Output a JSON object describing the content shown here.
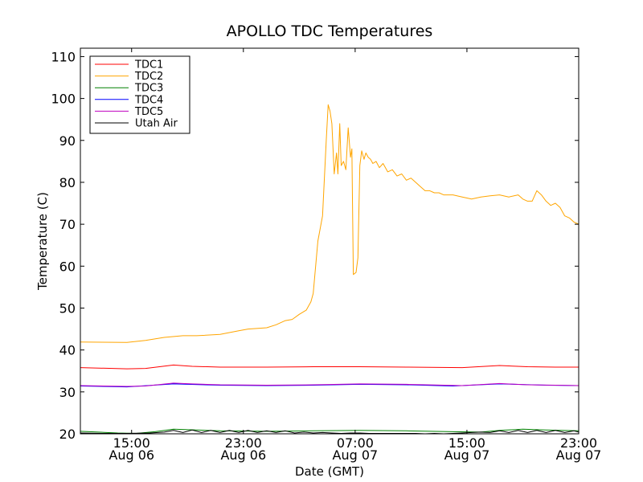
{
  "chart_data": {
    "type": "line",
    "title": "APOLLO TDC Temperatures",
    "xlabel": "Date (GMT)",
    "ylabel": "Temperature (C)",
    "xlim_hours": [
      0,
      107
    ],
    "ylim": [
      20,
      112
    ],
    "yticks": [
      20,
      30,
      40,
      50,
      60,
      70,
      80,
      90,
      100,
      110
    ],
    "xticks": [
      {
        "hour": 11,
        "time": "15:00",
        "date": "Aug 06"
      },
      {
        "hour": 35,
        "time": "23:00",
        "date": "Aug 06"
      },
      {
        "hour": 59,
        "time": "07:00",
        "date": "Aug 07"
      },
      {
        "hour": 83,
        "time": "15:00",
        "date": "Aug 07"
      },
      {
        "hour": 107,
        "time": "23:00",
        "date": "Aug 07"
      }
    ],
    "legend_position": "top-left",
    "series": [
      {
        "name": "TDC1",
        "color": "#ff0000",
        "x": [
          0,
          10,
          14,
          20,
          24,
          30,
          40,
          50,
          60,
          70,
          82,
          90,
          96,
          102,
          107
        ],
        "y": [
          35.8,
          35.5,
          35.6,
          36.4,
          36.1,
          35.9,
          35.9,
          36.0,
          36.0,
          35.9,
          35.8,
          36.3,
          36.0,
          35.9,
          35.9
        ]
      },
      {
        "name": "TDC2",
        "color": "#ffa500",
        "x": [
          0,
          10,
          14,
          18,
          22,
          25,
          30,
          34,
          36,
          40,
          42,
          44,
          45.5,
          47,
          48.5,
          49.5,
          50,
          51,
          52,
          52.8,
          53.2,
          53.6,
          54,
          54.5,
          55,
          55.3,
          55.7,
          56,
          56.5,
          57,
          57.5,
          58,
          58.3,
          58.6,
          59.2,
          59.6,
          60,
          60.4,
          60.9,
          61.3,
          61.8,
          62.3,
          62.8,
          63.5,
          64.2,
          65,
          66,
          67,
          68,
          69,
          70,
          71,
          72,
          73,
          74,
          75,
          76,
          77,
          78,
          80,
          82,
          84,
          86,
          88,
          90,
          92,
          94,
          95,
          96,
          97,
          98,
          99,
          100,
          101,
          102,
          103,
          104,
          105,
          106,
          107
        ],
        "y": [
          41.9,
          41.8,
          42.3,
          43.0,
          43.4,
          43.4,
          43.7,
          44.6,
          45.0,
          45.3,
          46.0,
          47.0,
          47.3,
          48.5,
          49.5,
          51.5,
          53.5,
          66.0,
          72.0,
          90.0,
          98.5,
          97.0,
          94.0,
          82.0,
          87.0,
          82.0,
          94.0,
          84.0,
          85.0,
          83.0,
          93.0,
          86.0,
          88.0,
          58.0,
          58.5,
          62.0,
          84.0,
          87.5,
          85.5,
          87.0,
          86.0,
          85.5,
          84.5,
          85.0,
          83.5,
          84.5,
          82.5,
          83.0,
          81.5,
          82.0,
          80.5,
          81.0,
          80.0,
          79.0,
          78.0,
          78.0,
          77.5,
          77.5,
          77.0,
          77.0,
          76.5,
          76.0,
          76.5,
          76.8,
          77.0,
          76.5,
          77.0,
          76.0,
          75.5,
          75.5,
          78.0,
          77.0,
          75.5,
          74.5,
          75.0,
          74.0,
          72.0,
          71.5,
          70.5,
          70.0
        ]
      },
      {
        "name": "TDC3",
        "color": "#008000",
        "x": [
          0,
          8,
          12,
          16,
          20,
          25,
          30,
          40,
          50,
          60,
          70,
          80,
          86,
          90,
          95,
          100,
          107
        ],
        "y": [
          20.6,
          20.2,
          20.1,
          20.5,
          21.1,
          20.9,
          20.7,
          20.6,
          20.7,
          20.8,
          20.7,
          20.5,
          20.4,
          20.8,
          21.1,
          20.9,
          20.7
        ]
      },
      {
        "name": "TDC4",
        "color": "#0000ff",
        "x": [
          0,
          10,
          20,
          30,
          40,
          50,
          60,
          70,
          80,
          90,
          100,
          107
        ],
        "y": [
          31.4,
          31.2,
          31.9,
          31.6,
          31.5,
          31.6,
          31.8,
          31.7,
          31.4,
          31.9,
          31.6,
          31.5
        ]
      },
      {
        "name": "TDC5",
        "color": "#bf00bf",
        "x": [
          0,
          10,
          14,
          20,
          24,
          30,
          40,
          50,
          60,
          70,
          82,
          90,
          96,
          102,
          107
        ],
        "y": [
          31.5,
          31.3,
          31.4,
          32.1,
          31.9,
          31.7,
          31.6,
          31.7,
          31.9,
          31.8,
          31.5,
          32.0,
          31.7,
          31.6,
          31.5
        ]
      },
      {
        "name": "Utah Air",
        "color": "#000000",
        "x": [
          0,
          5,
          10,
          15,
          18,
          20,
          22,
          24,
          26,
          28,
          30,
          32,
          34,
          36,
          38,
          40,
          42,
          44,
          46,
          48,
          50,
          52,
          54,
          56,
          58,
          60,
          62,
          64,
          66,
          68,
          70,
          72,
          74,
          76,
          78,
          80,
          82,
          84,
          86,
          88,
          90,
          92,
          94,
          96,
          98,
          100,
          102,
          104,
          106,
          107
        ],
        "y": [
          20.2,
          20.1,
          20.1,
          20.2,
          20.4,
          20.8,
          20.3,
          20.9,
          20.3,
          20.8,
          20.3,
          20.8,
          20.3,
          20.8,
          20.3,
          20.7,
          20.3,
          20.7,
          20.2,
          20.4,
          20.2,
          20.3,
          20.2,
          20.1,
          20.2,
          20.2,
          20.1,
          20.1,
          20.1,
          20.1,
          20.1,
          20.1,
          20.0,
          20.1,
          20.0,
          20.1,
          20.2,
          20.3,
          20.4,
          20.3,
          20.7,
          20.3,
          20.8,
          20.3,
          20.8,
          20.3,
          20.8,
          20.3,
          20.7,
          20.4
        ]
      }
    ]
  }
}
